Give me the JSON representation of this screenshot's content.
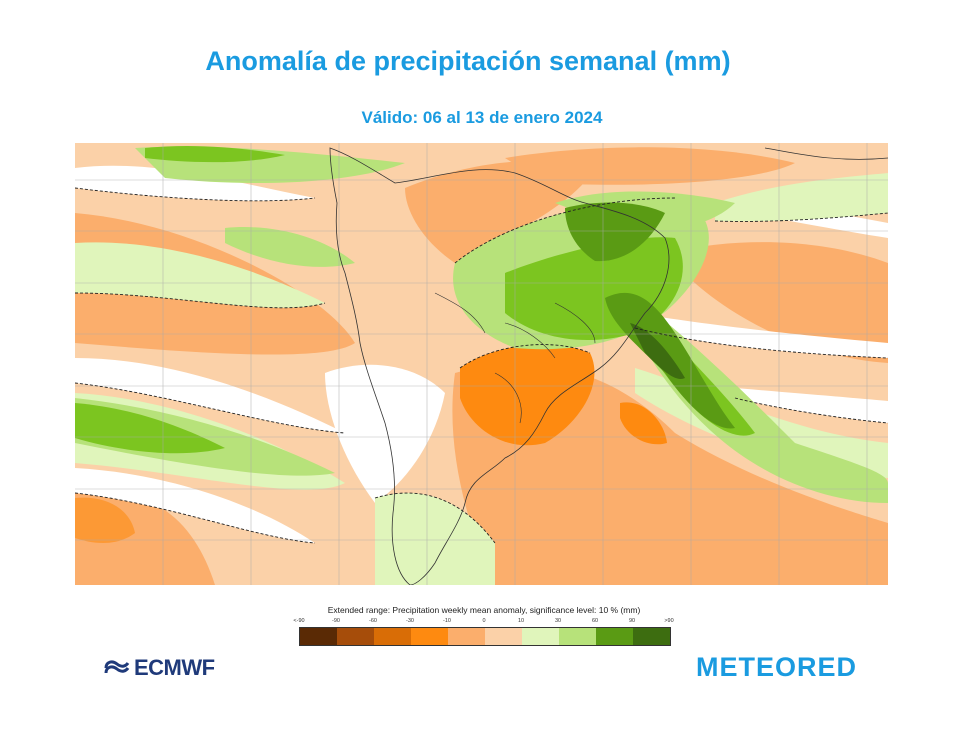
{
  "header": {
    "title": "Anomalía de precipitación semanal (mm)",
    "subtitle": "Válido: 06 al 13 de enero 2024"
  },
  "legend": {
    "caption": "Extended range: Precipitation weekly mean anomaly, significance level: 10 % (mm)",
    "ticks": [
      "<-90",
      "-90",
      "-60",
      "-30",
      "-10",
      "0",
      "10",
      "30",
      "60",
      "90",
      ">90"
    ],
    "colors": [
      "#5a2a05",
      "#a64d0a",
      "#d96d06",
      "#fe8a10",
      "#fbae6c",
      "#fbd1a8",
      "#e0f5bb",
      "#b7e27a",
      "#7cc520",
      "#5a9b14",
      "#3d6d10"
    ]
  },
  "logos": {
    "left": "ECMWF",
    "right": "METEORED"
  },
  "map": {
    "region": "South America and surrounding oceans",
    "colors": {
      "light_orange": "#fbd1a8",
      "orange": "#fbae6c",
      "dark_orange": "#fe8a10",
      "light_green": "#e0f5bb",
      "green": "#b7e27a",
      "mid_green": "#7cc520",
      "dark_green": "#5a9b14",
      "darkest_green": "#3d6d10"
    }
  }
}
